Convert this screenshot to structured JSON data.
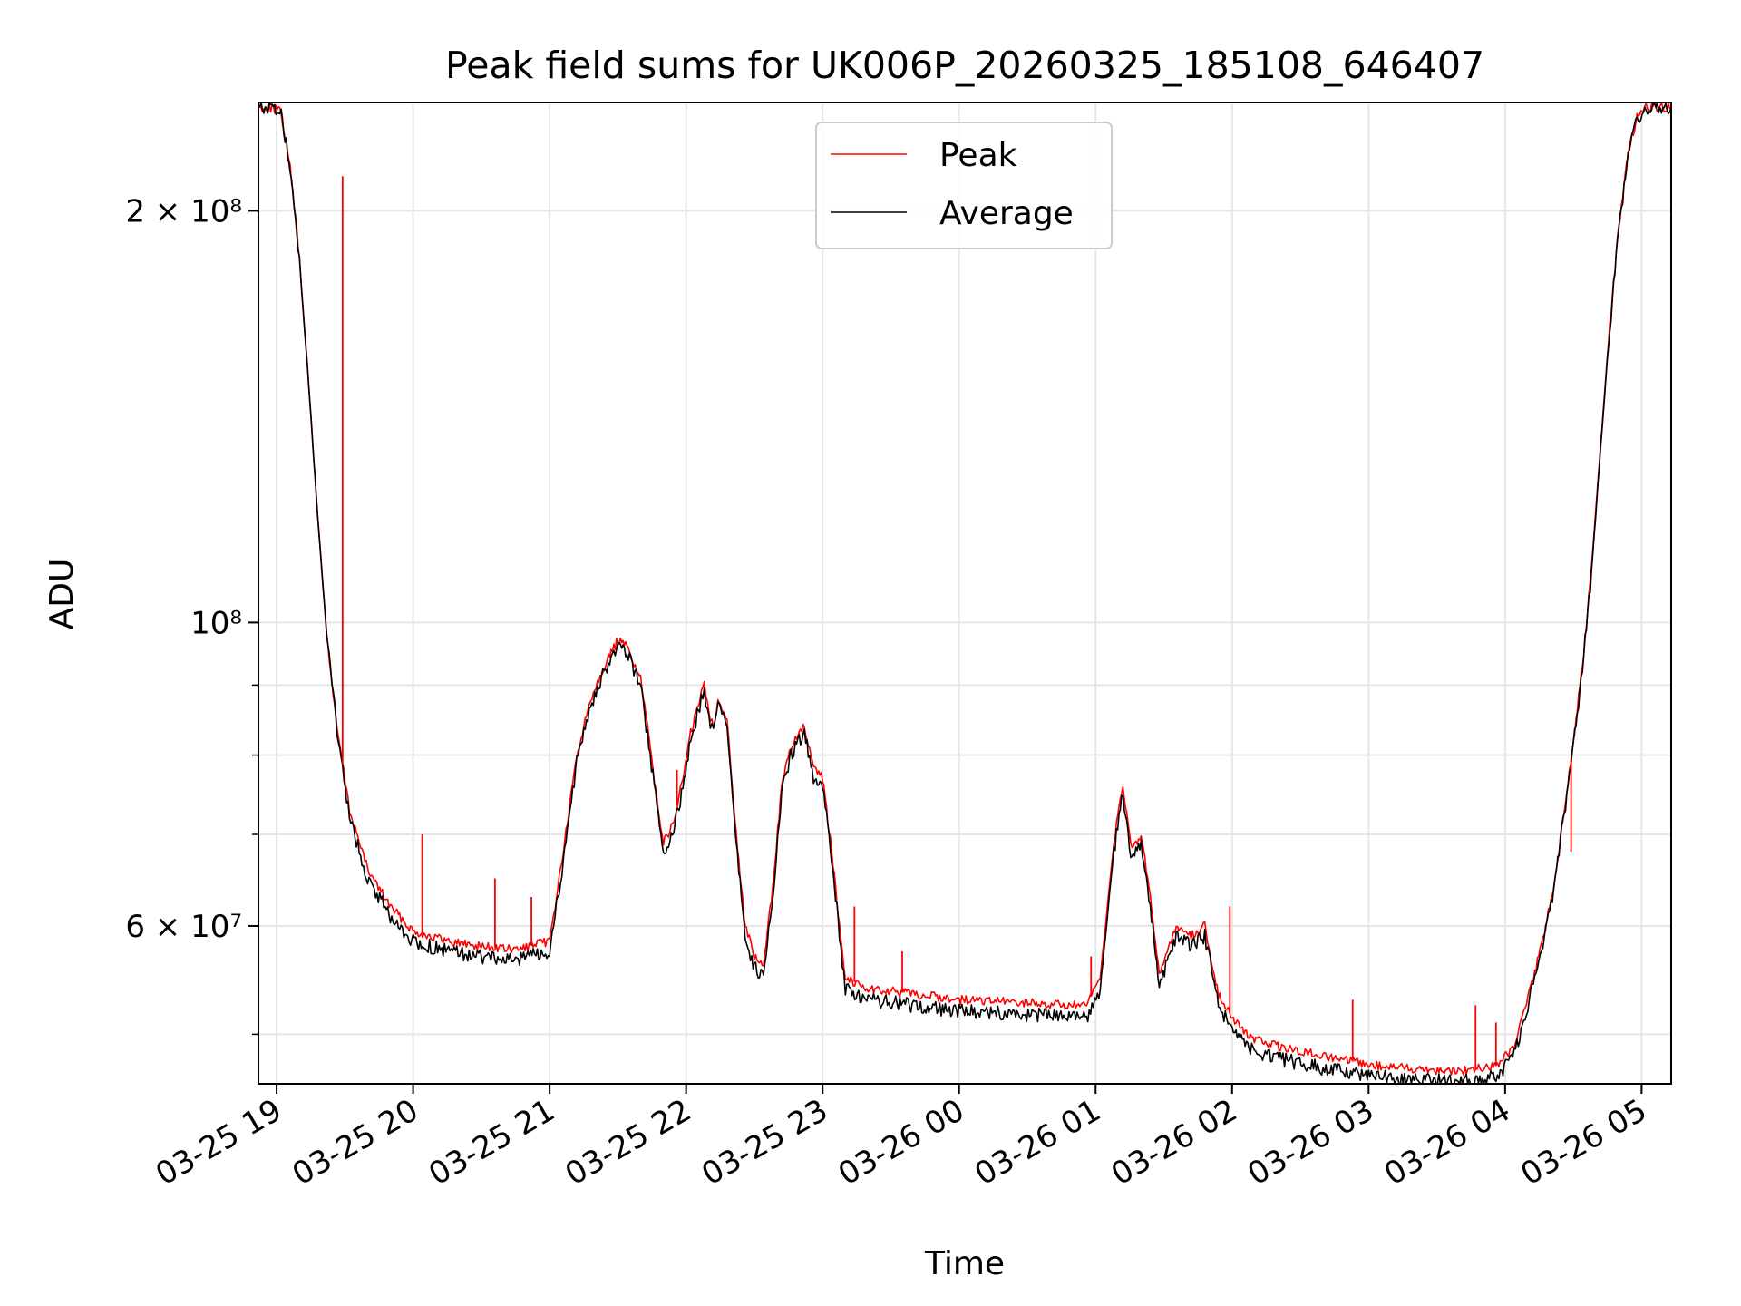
{
  "chart_data": {
    "type": "line",
    "title": "Peak field sums for UK006P_20260325_185108_646407",
    "xlabel": "Time",
    "ylabel": "ADU",
    "x_scale": "time",
    "y_scale": "log",
    "xlim": [
      "2026-03-25T18:52",
      "2026-03-26T05:13"
    ],
    "ylim": [
      46000000,
      240000000
    ],
    "grid": true,
    "legend": "top-center",
    "x_ticks": [
      {
        "value": "2026-03-25T19:00",
        "label": "03-25 19"
      },
      {
        "value": "2026-03-25T20:00",
        "label": "03-25 20"
      },
      {
        "value": "2026-03-25T21:00",
        "label": "03-25 21"
      },
      {
        "value": "2026-03-25T22:00",
        "label": "03-25 22"
      },
      {
        "value": "2026-03-25T23:00",
        "label": "03-25 23"
      },
      {
        "value": "2026-03-26T00:00",
        "label": "03-26 00"
      },
      {
        "value": "2026-03-26T01:00",
        "label": "03-26 01"
      },
      {
        "value": "2026-03-26T02:00",
        "label": "03-26 02"
      },
      {
        "value": "2026-03-26T03:00",
        "label": "03-26 03"
      },
      {
        "value": "2026-03-26T04:00",
        "label": "03-26 04"
      },
      {
        "value": "2026-03-26T05:00",
        "label": "03-26 05"
      }
    ],
    "y_ticks": [
      {
        "value": 60000000,
        "label": "6 × 10⁷"
      },
      {
        "value": 100000000,
        "label": "10⁸"
      },
      {
        "value": 200000000,
        "label": "2 × 10⁸"
      }
    ],
    "y_minor_ticks": [
      50000000,
      70000000,
      80000000,
      90000000
    ],
    "series": [
      {
        "name": "Peak",
        "color": "#ff0000",
        "x": [
          "2026-03-25T18:52",
          "2026-03-25T18:58",
          "2026-03-25T19:02",
          "2026-03-25T19:06",
          "2026-03-25T19:10",
          "2026-03-25T19:14",
          "2026-03-25T19:18",
          "2026-03-25T19:22",
          "2026-03-25T19:26",
          "2026-03-25T19:32",
          "2026-03-25T19:40",
          "2026-03-25T19:50",
          "2026-03-25T20:00",
          "2026-03-25T20:15",
          "2026-03-25T20:30",
          "2026-03-25T20:45",
          "2026-03-25T21:00",
          "2026-03-25T21:06",
          "2026-03-25T21:12",
          "2026-03-25T21:18",
          "2026-03-25T21:24",
          "2026-03-25T21:30",
          "2026-03-25T21:34",
          "2026-03-25T21:40",
          "2026-03-25T21:46",
          "2026-03-25T21:50",
          "2026-03-25T21:54",
          "2026-03-25T21:58",
          "2026-03-25T22:02",
          "2026-03-25T22:06",
          "2026-03-25T22:08",
          "2026-03-25T22:10",
          "2026-03-25T22:12",
          "2026-03-25T22:14",
          "2026-03-25T22:18",
          "2026-03-25T22:22",
          "2026-03-25T22:26",
          "2026-03-25T22:30",
          "2026-03-25T22:34",
          "2026-03-25T22:38",
          "2026-03-25T22:42",
          "2026-03-25T22:46",
          "2026-03-25T22:48",
          "2026-03-25T22:52",
          "2026-03-25T22:56",
          "2026-03-25T23:00",
          "2026-03-25T23:04",
          "2026-03-25T23:08",
          "2026-03-25T23:10",
          "2026-03-25T23:20",
          "2026-03-25T23:40",
          "2026-03-26T00:00",
          "2026-03-26T00:20",
          "2026-03-26T00:40",
          "2026-03-26T00:56",
          "2026-03-26T01:02",
          "2026-03-26T01:08",
          "2026-03-26T01:12",
          "2026-03-26T01:16",
          "2026-03-26T01:20",
          "2026-03-26T01:24",
          "2026-03-26T01:28",
          "2026-03-26T01:32",
          "2026-03-26T01:36",
          "2026-03-26T01:42",
          "2026-03-26T01:48",
          "2026-03-26T01:54",
          "2026-03-26T02:00",
          "2026-03-26T02:04",
          "2026-03-26T02:08",
          "2026-03-26T02:20",
          "2026-03-26T02:40",
          "2026-03-26T03:00",
          "2026-03-26T03:20",
          "2026-03-26T03:40",
          "2026-03-26T03:56",
          "2026-03-26T04:04",
          "2026-03-26T04:10",
          "2026-03-26T04:16",
          "2026-03-26T04:22",
          "2026-03-26T04:26",
          "2026-03-26T04:30",
          "2026-03-26T04:34",
          "2026-03-26T04:38",
          "2026-03-26T04:42",
          "2026-03-26T04:46",
          "2026-03-26T04:50",
          "2026-03-26T04:54",
          "2026-03-26T04:58",
          "2026-03-26T05:02",
          "2026-03-26T05:13"
        ],
        "y": [
          238000000,
          238000000,
          236000000,
          215000000,
          185000000,
          150000000,
          120000000,
          98000000,
          85000000,
          73000000,
          66000000,
          62000000,
          59500000,
          58500000,
          58000000,
          57600000,
          58500000,
          68000000,
          80000000,
          88000000,
          93000000,
          97000000,
          96000000,
          91000000,
          77000000,
          69000000,
          71000000,
          76000000,
          83000000,
          88000000,
          90000000,
          86000000,
          84000000,
          88000000,
          85000000,
          70000000,
          60000000,
          57000000,
          56000000,
          64000000,
          76000000,
          81000000,
          82000000,
          84000000,
          78000000,
          77000000,
          68000000,
          59000000,
          55000000,
          54000000,
          53500000,
          53000000,
          52800000,
          52600000,
          52400000,
          55000000,
          69000000,
          76000000,
          68000000,
          70000000,
          63000000,
          55000000,
          58000000,
          60000000,
          59000000,
          60000000,
          53500000,
          51500000,
          50500000,
          49700000,
          49000000,
          48200000,
          47500000,
          47200000,
          47000000,
          47400000,
          49000000,
          53000000,
          58000000,
          65000000,
          73000000,
          82000000,
          93000000,
          110000000,
          135000000,
          165000000,
          195000000,
          220000000,
          234000000,
          238000000,
          238000000
        ]
      },
      {
        "name": "Average",
        "color": "#000000",
        "x": [
          "2026-03-25T18:52",
          "2026-03-25T18:58",
          "2026-03-25T19:02",
          "2026-03-25T19:06",
          "2026-03-25T19:10",
          "2026-03-25T19:14",
          "2026-03-25T19:18",
          "2026-03-25T19:22",
          "2026-03-25T19:26",
          "2026-03-25T19:32",
          "2026-03-25T19:40",
          "2026-03-25T19:50",
          "2026-03-25T20:00",
          "2026-03-25T20:15",
          "2026-03-25T20:30",
          "2026-03-25T20:45",
          "2026-03-25T21:00",
          "2026-03-25T21:06",
          "2026-03-25T21:12",
          "2026-03-25T21:18",
          "2026-03-25T21:24",
          "2026-03-25T21:30",
          "2026-03-25T21:34",
          "2026-03-25T21:40",
          "2026-03-25T21:46",
          "2026-03-25T21:50",
          "2026-03-25T21:54",
          "2026-03-25T21:58",
          "2026-03-25T22:02",
          "2026-03-25T22:06",
          "2026-03-25T22:08",
          "2026-03-25T22:10",
          "2026-03-25T22:12",
          "2026-03-25T22:14",
          "2026-03-25T22:18",
          "2026-03-25T22:22",
          "2026-03-25T22:26",
          "2026-03-25T22:30",
          "2026-03-25T22:34",
          "2026-03-25T22:38",
          "2026-03-25T22:42",
          "2026-03-25T22:46",
          "2026-03-25T22:48",
          "2026-03-25T22:52",
          "2026-03-25T22:56",
          "2026-03-25T23:00",
          "2026-03-25T23:04",
          "2026-03-25T23:08",
          "2026-03-25T23:10",
          "2026-03-25T23:20",
          "2026-03-25T23:40",
          "2026-03-26T00:00",
          "2026-03-26T00:20",
          "2026-03-26T00:40",
          "2026-03-26T00:56",
          "2026-03-26T01:02",
          "2026-03-26T01:08",
          "2026-03-26T01:12",
          "2026-03-26T01:16",
          "2026-03-26T01:20",
          "2026-03-26T01:24",
          "2026-03-26T01:28",
          "2026-03-26T01:32",
          "2026-03-26T01:36",
          "2026-03-26T01:42",
          "2026-03-26T01:48",
          "2026-03-26T01:54",
          "2026-03-26T02:00",
          "2026-03-26T02:04",
          "2026-03-26T02:08",
          "2026-03-26T02:20",
          "2026-03-26T02:40",
          "2026-03-26T03:00",
          "2026-03-26T03:20",
          "2026-03-26T03:40",
          "2026-03-26T03:56",
          "2026-03-26T04:04",
          "2026-03-26T04:10",
          "2026-03-26T04:16",
          "2026-03-26T04:22",
          "2026-03-26T04:26",
          "2026-03-26T04:30",
          "2026-03-26T04:34",
          "2026-03-26T04:38",
          "2026-03-26T04:42",
          "2026-03-26T04:46",
          "2026-03-26T04:50",
          "2026-03-26T04:54",
          "2026-03-26T04:58",
          "2026-03-26T05:02",
          "2026-03-26T05:13"
        ],
        "y": [
          238000000,
          238000000,
          236000000,
          215000000,
          185000000,
          150000000,
          120000000,
          98000000,
          85000000,
          72000000,
          65000000,
          61000000,
          58500000,
          57500000,
          57000000,
          56600000,
          57500000,
          67000000,
          79000000,
          87000000,
          92000000,
          96000000,
          95000000,
          90000000,
          76000000,
          68000000,
          70000000,
          75000000,
          82000000,
          87000000,
          89000000,
          85000000,
          83000000,
          87000000,
          84000000,
          69000000,
          59000000,
          56000000,
          55000000,
          63000000,
          75000000,
          80000000,
          81000000,
          83000000,
          77000000,
          76000000,
          67000000,
          58000000,
          54000000,
          53000000,
          52500000,
          52000000,
          51800000,
          51600000,
          51400000,
          54000000,
          68000000,
          75000000,
          67000000,
          69000000,
          62000000,
          54000000,
          57000000,
          59000000,
          58000000,
          59000000,
          52500000,
          50500000,
          49500000,
          48700000,
          48000000,
          47200000,
          46600000,
          46300000,
          46200000,
          46500000,
          48300000,
          52500000,
          57500000,
          64500000,
          72500000,
          81500000,
          92500000,
          109000000,
          134000000,
          164000000,
          194000000,
          219000000,
          233000000,
          238000000,
          238000000
        ]
      }
    ],
    "spikes": [
      {
        "x": "2026-03-25T19:29",
        "y": 212000000
      },
      {
        "x": "2026-03-25T20:04",
        "y": 70000000
      },
      {
        "x": "2026-03-25T20:36",
        "y": 65000000
      },
      {
        "x": "2026-03-25T20:52",
        "y": 63000000
      },
      {
        "x": "2026-03-25T21:56",
        "y": 78000000
      },
      {
        "x": "2026-03-25T23:14",
        "y": 62000000
      },
      {
        "x": "2026-03-25T23:35",
        "y": 57500000
      },
      {
        "x": "2026-03-26T00:58",
        "y": 57000000
      },
      {
        "x": "2026-03-26T01:59",
        "y": 62000000
      },
      {
        "x": "2026-03-26T02:53",
        "y": 53000000
      },
      {
        "x": "2026-03-26T03:47",
        "y": 52500000
      },
      {
        "x": "2026-03-26T03:56",
        "y": 51000000
      },
      {
        "x": "2026-03-26T04:29",
        "y": 68000000
      }
    ]
  }
}
